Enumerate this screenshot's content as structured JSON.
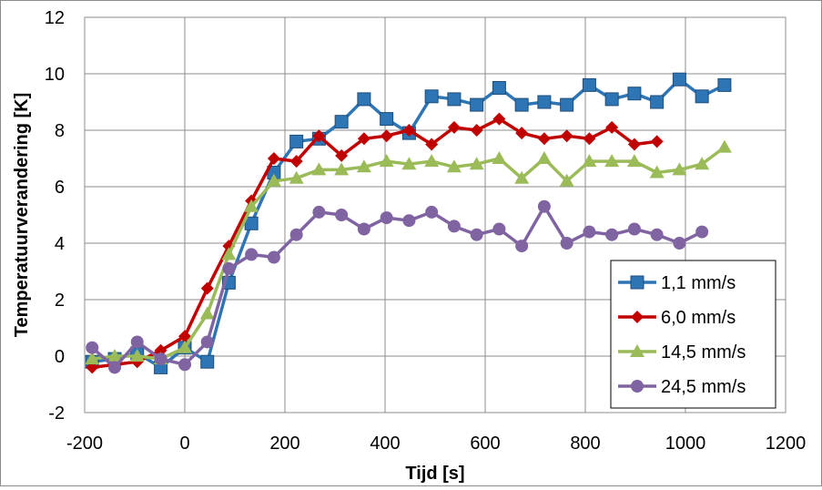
{
  "chart_data": {
    "type": "line",
    "title": "",
    "xlabel": "Tijd [s]",
    "ylabel": "Temperatuurverandering [K]",
    "xlim": [
      -200,
      1200
    ],
    "ylim": [
      -2,
      12
    ],
    "xticks": [
      -200,
      0,
      200,
      400,
      600,
      800,
      1000,
      1200
    ],
    "yticks": [
      -2,
      0,
      2,
      4,
      6,
      8,
      10,
      12
    ],
    "xtick_labels": [
      "-200",
      "0",
      "200",
      "400",
      "600",
      "800",
      "1000",
      "1200"
    ],
    "ytick_labels": [
      "-2",
      "0",
      "2",
      "4",
      "6",
      "8",
      "10",
      "12"
    ],
    "grid": true,
    "legend_position": "bottom-right",
    "series": [
      {
        "name": "1,1 mm/s",
        "color": "#2e75b6",
        "marker": "square",
        "x": [
          -185,
          -140,
          -95,
          -48,
          0,
          45,
          88,
          133,
          178,
          223,
          268,
          313,
          358,
          403,
          448,
          493,
          538,
          583,
          628,
          673,
          718,
          763,
          808,
          853,
          898,
          943,
          988,
          1033,
          1078
        ],
        "y": [
          -0.2,
          -0.1,
          0.1,
          -0.4,
          0.3,
          -0.2,
          2.6,
          4.7,
          6.5,
          7.6,
          7.7,
          8.3,
          9.1,
          8.4,
          7.9,
          9.2,
          9.1,
          8.9,
          9.5,
          8.9,
          9.0,
          8.9,
          9.6,
          9.1,
          9.3,
          9.0,
          9.8,
          9.2,
          9.6
        ]
      },
      {
        "name": "6,0 mm/s",
        "color": "#c00000",
        "marker": "diamond",
        "x": [
          -185,
          -140,
          -95,
          -48,
          0,
          45,
          88,
          133,
          178,
          223,
          268,
          313,
          358,
          403,
          448,
          493,
          538,
          583,
          628,
          673,
          718,
          763,
          808,
          853,
          898,
          943
        ],
        "y": [
          -0.4,
          -0.3,
          -0.2,
          0.2,
          0.7,
          2.4,
          3.9,
          5.5,
          7.0,
          6.9,
          7.8,
          7.1,
          7.7,
          7.8,
          8.0,
          7.5,
          8.1,
          8.0,
          8.4,
          7.9,
          7.7,
          7.8,
          7.7,
          8.1,
          7.5,
          7.6
        ]
      },
      {
        "name": "14,5 mm/s",
        "color": "#9bbb59",
        "marker": "triangle",
        "x": [
          -185,
          -140,
          -95,
          -48,
          0,
          45,
          88,
          133,
          178,
          223,
          268,
          313,
          358,
          403,
          448,
          493,
          538,
          583,
          628,
          673,
          718,
          763,
          808,
          853,
          898,
          943,
          988,
          1033,
          1078
        ],
        "y": [
          -0.1,
          0.0,
          0.0,
          -0.1,
          0.3,
          1.5,
          3.6,
          5.3,
          6.2,
          6.3,
          6.6,
          6.6,
          6.7,
          6.9,
          6.8,
          6.9,
          6.7,
          6.8,
          7.0,
          6.3,
          7.0,
          6.2,
          6.9,
          6.9,
          6.9,
          6.5,
          6.6,
          6.8,
          7.4
        ]
      },
      {
        "name": "24,5 mm/s",
        "color": "#8064a2",
        "marker": "circle",
        "x": [
          -185,
          -140,
          -95,
          -48,
          0,
          45,
          88,
          133,
          178,
          223,
          268,
          313,
          358,
          403,
          448,
          493,
          538,
          583,
          628,
          673,
          718,
          763,
          808,
          853,
          898,
          943,
          988,
          1033
        ],
        "y": [
          0.3,
          -0.4,
          0.5,
          -0.1,
          -0.3,
          0.5,
          3.1,
          3.6,
          3.5,
          4.3,
          5.1,
          5.0,
          4.5,
          4.9,
          4.8,
          5.1,
          4.6,
          4.3,
          4.5,
          3.9,
          5.3,
          4.0,
          4.4,
          4.3,
          4.5,
          4.3,
          4.0,
          4.4
        ]
      }
    ]
  }
}
